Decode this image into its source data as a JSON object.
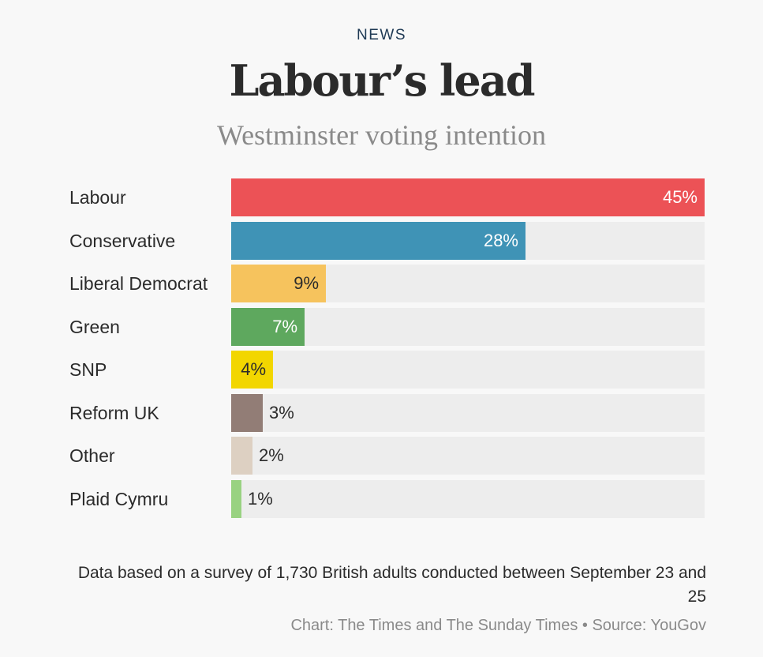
{
  "header": {
    "kicker": "NEWS",
    "title": "Labour’s lead",
    "subtitle": "Westminster voting intention"
  },
  "chart_data": {
    "type": "bar",
    "orientation": "horizontal",
    "title": "Labour’s lead",
    "subtitle": "Westminster voting intention",
    "xlim": [
      0,
      45
    ],
    "grid": false,
    "categories": [
      "Labour",
      "Conservative",
      "Liberal Democrat",
      "Green",
      "SNP",
      "Reform UK",
      "Other",
      "Plaid Cymru"
    ],
    "values": [
      45,
      28,
      9,
      7,
      4,
      3,
      2,
      1
    ],
    "value_labels": [
      "45%",
      "28%",
      "9%",
      "7%",
      "4%",
      "3%",
      "2%",
      "1%"
    ],
    "colors": [
      "#ec5256",
      "#3f93b6",
      "#f6c35d",
      "#5ea85e",
      "#f2d600",
      "#927d76",
      "#ddd0c2",
      "#99d281"
    ],
    "track_color": "#ededed"
  },
  "footer": {
    "note": "Data based on a survey of 1,730 British adults conducted between September 23 and 25",
    "credit": "Chart: The Times and The Sunday Times • Source: YouGov"
  }
}
